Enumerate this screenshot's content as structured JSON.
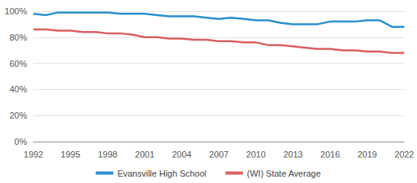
{
  "chart_data": {
    "type": "line",
    "x": [
      1992,
      1993,
      1994,
      1995,
      1996,
      1997,
      1998,
      1999,
      2000,
      2001,
      2002,
      2003,
      2004,
      2005,
      2006,
      2007,
      2008,
      2009,
      2010,
      2011,
      2012,
      2013,
      2014,
      2015,
      2016,
      2017,
      2018,
      2019,
      2020,
      2021,
      2022
    ],
    "series": [
      {
        "name": "Evansville High School",
        "color": "#2b8fcb",
        "values": [
          98,
          97,
          99,
          99,
          99,
          99,
          99,
          98,
          98,
          98,
          97,
          96,
          96,
          96,
          95,
          94,
          95,
          94,
          93,
          93,
          91,
          90,
          90,
          90,
          92,
          92,
          92,
          93,
          93,
          88,
          88
        ]
      },
      {
        "name": "(WI) State Average",
        "color": "#d9605f",
        "values": [
          86,
          86,
          85,
          85,
          84,
          84,
          83,
          83,
          82,
          80,
          80,
          79,
          79,
          78,
          78,
          77,
          77,
          76,
          76,
          74,
          74,
          73,
          72,
          71,
          71,
          70,
          70,
          69,
          69,
          68,
          68
        ]
      }
    ],
    "xlim": [
      1992,
      2022
    ],
    "xticks": [
      1992,
      1995,
      1998,
      2001,
      2004,
      2007,
      2010,
      2013,
      2016,
      2019,
      2022
    ],
    "ylim": [
      0,
      100
    ],
    "yticks": [
      {
        "value": 0,
        "label": "0%"
      },
      {
        "value": 20,
        "label": "20%"
      },
      {
        "value": 40,
        "label": "40%"
      },
      {
        "value": 60,
        "label": "60%"
      },
      {
        "value": 80,
        "label": "80%"
      },
      {
        "value": 100,
        "label": "100%"
      }
    ],
    "grid": true,
    "legend": "bottom"
  }
}
